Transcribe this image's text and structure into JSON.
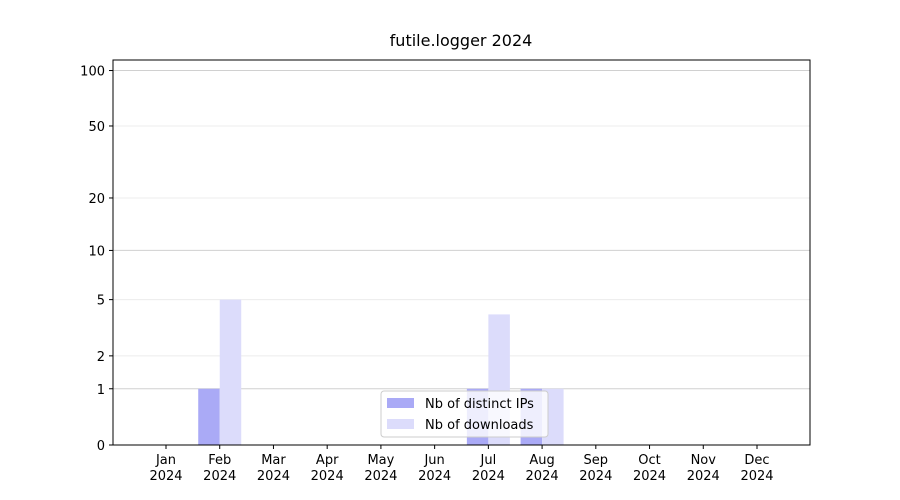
{
  "chart_data": {
    "type": "bar",
    "title": "futile.logger 2024",
    "categories": [
      "Jan\n2024",
      "Feb\n2024",
      "Mar\n2024",
      "Apr\n2024",
      "May\n2024",
      "Jun\n2024",
      "Jul\n2024",
      "Aug\n2024",
      "Sep\n2024",
      "Oct\n2024",
      "Nov\n2024",
      "Dec\n2024"
    ],
    "series": [
      {
        "name": "Nb of distinct IPs",
        "color": "#aaaaf6",
        "values": [
          0,
          1,
          0,
          0,
          0,
          0,
          1,
          1,
          0,
          0,
          0,
          0
        ]
      },
      {
        "name": "Nb of downloads",
        "color": "#dcdcfb",
        "values": [
          0,
          5,
          0,
          0,
          0,
          0,
          4,
          1,
          0,
          0,
          0,
          0
        ]
      }
    ],
    "yscale": "log1p",
    "ylim": [
      0,
      114
    ],
    "yticks": [
      0,
      1,
      2,
      5,
      10,
      20,
      50,
      100
    ],
    "grid": true,
    "legend": "lower center"
  }
}
